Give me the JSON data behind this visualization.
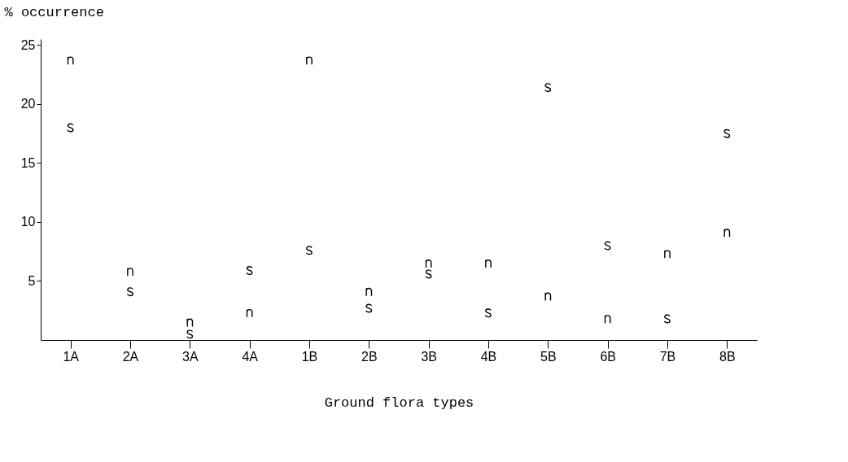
{
  "chart_data": {
    "type": "scatter",
    "xlabel": "Ground flora types",
    "ylabel": "% occurrence",
    "categories": [
      "1A",
      "2A",
      "3A",
      "4A",
      "1B",
      "2B",
      "3B",
      "4B",
      "5B",
      "6B",
      "7B",
      "8B"
    ],
    "series": [
      {
        "color": "#000000",
        "values": [
          23.7,
          5.8,
          1.5,
          2.3,
          23.7,
          4.1,
          6.5,
          6.5,
          3.7,
          1.8,
          7.3,
          9.1
        ]
      },
      {
        "color": "#000000",
        "values": [
          18.0,
          4.1,
          0.5,
          5.9,
          7.6,
          2.7,
          5.6,
          2.3,
          21.4,
          8.0,
          1.8,
          17.5
        ]
      }
    ],
    "ylim": [
      0,
      25.5
    ],
    "yticks": [
      5,
      10,
      15,
      20,
      25
    ],
    "grid": false
  }
}
